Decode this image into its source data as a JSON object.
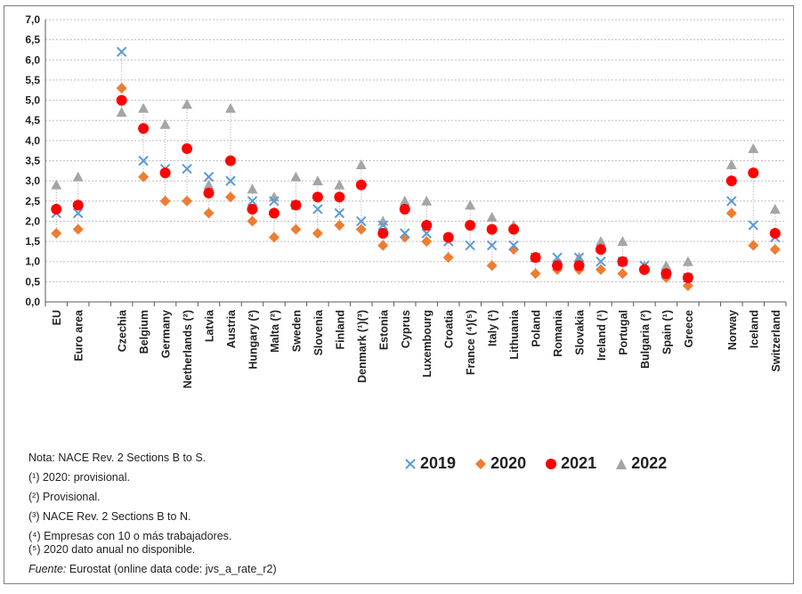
{
  "chart_data": {
    "type": "scatter",
    "title": "",
    "ylim": [
      0,
      7
    ],
    "yticks": [
      "0,0",
      "0,5",
      "1,0",
      "1,5",
      "2,0",
      "2,5",
      "3,0",
      "3,5",
      "4,0",
      "4,5",
      "5,0",
      "5,5",
      "6,0",
      "6,5",
      "7,0"
    ],
    "categories": [
      "EU",
      "Euro area",
      "",
      "Czechia",
      "Belgium",
      "Germany",
      "Netherlands (²)",
      "Latvia",
      "Austria",
      "Hungary (²)",
      "Malta (²)",
      "Sweden",
      "Slovenia",
      "Finland",
      "Denmark (¹)(³)",
      "Estonia",
      "Cyprus",
      "Luxembourg",
      "Croatia",
      "France (⁴)(⁵)",
      "Italy (¹)",
      "Lithuania",
      "Poland",
      "Romania",
      "Slovakia",
      "Ireland (¹)",
      "Portugal",
      "Bulgaria (²)",
      "Spain (¹)",
      "Greece",
      "",
      "Norway",
      "Iceland",
      "Switzerland"
    ],
    "series": [
      {
        "name": "2019",
        "marker": "x",
        "color": "#5b9bd5",
        "values": [
          2.2,
          2.2,
          null,
          6.2,
          3.5,
          3.3,
          3.3,
          3.1,
          3.0,
          2.5,
          2.5,
          2.4,
          2.3,
          2.2,
          2.0,
          1.9,
          1.7,
          1.7,
          1.5,
          1.4,
          1.4,
          1.4,
          1.1,
          1.1,
          1.1,
          1.0,
          1.0,
          0.9,
          0.7,
          0.6,
          null,
          2.5,
          1.9,
          1.6
        ]
      },
      {
        "name": "2020",
        "marker": "diamond",
        "color": "#ed7d31",
        "values": [
          1.7,
          1.8,
          null,
          5.3,
          3.1,
          2.5,
          2.5,
          2.2,
          2.6,
          2.0,
          1.6,
          1.8,
          1.7,
          1.9,
          1.8,
          1.4,
          1.6,
          1.5,
          1.1,
          null,
          0.9,
          1.3,
          0.7,
          0.8,
          0.8,
          0.8,
          0.7,
          0.8,
          0.6,
          0.4,
          null,
          2.2,
          1.4,
          1.3
        ]
      },
      {
        "name": "2021",
        "marker": "circle",
        "color": "#ff0000",
        "values": [
          2.3,
          2.4,
          null,
          5.0,
          4.3,
          3.2,
          3.8,
          2.7,
          3.5,
          2.3,
          2.2,
          2.4,
          2.6,
          2.6,
          2.9,
          1.7,
          2.3,
          1.9,
          1.6,
          1.9,
          1.8,
          1.8,
          1.1,
          0.9,
          0.9,
          1.3,
          1.0,
          0.8,
          0.7,
          0.6,
          null,
          3.0,
          3.2,
          1.7
        ]
      },
      {
        "name": "2022",
        "marker": "triangle",
        "color": "#a5a5a5",
        "values": [
          2.9,
          3.1,
          null,
          4.7,
          4.8,
          4.4,
          4.9,
          2.9,
          4.8,
          2.8,
          2.6,
          3.1,
          3.0,
          2.9,
          3.4,
          2.0,
          2.5,
          2.5,
          1.6,
          2.4,
          2.1,
          1.9,
          1.1,
          1.0,
          1.1,
          1.5,
          1.5,
          0.9,
          0.9,
          1.0,
          null,
          3.4,
          3.8,
          2.3
        ]
      }
    ]
  },
  "legend": {
    "items": [
      "2019",
      "2020",
      "2021",
      "2022"
    ]
  },
  "notes": {
    "nota": "Nota: NACE Rev. 2 Sections B to S.",
    "n1": "(¹) 2020: provisional.",
    "n2": "(²) Provisional.",
    "n3": "(³) NACE Rev. 2 Sections B to N.",
    "n4": "(⁴) Empresas con 10 o más trabajadores.",
    "n5": "(⁵) 2020 dato anual no disponible.",
    "fuente_label": "Fuente:",
    "fuente_text": " Eurostat (online data code: jvs_a_rate_r2)"
  },
  "colors": {
    "grid": "#bfbfbf",
    "axis": "#595959",
    "stem": "#a6a6a6"
  }
}
